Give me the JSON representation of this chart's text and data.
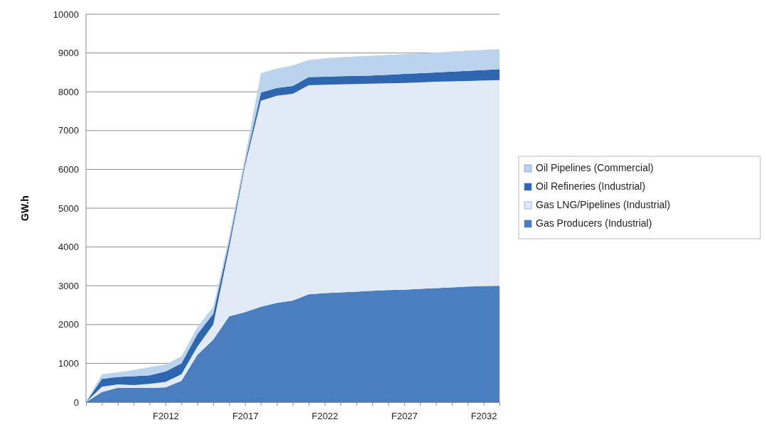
{
  "chart_data": {
    "type": "area",
    "stacked": true,
    "ylabel": "GW.h",
    "categories": [
      null,
      null,
      null,
      null,
      null,
      "F2012",
      null,
      null,
      null,
      null,
      "F2017",
      null,
      null,
      null,
      null,
      "F2022",
      null,
      null,
      null,
      null,
      "F2027",
      null,
      null,
      null,
      null,
      "F2032",
      null
    ],
    "ylim": [
      0,
      10000
    ],
    "yticks": [
      0,
      1000,
      2000,
      3000,
      4000,
      5000,
      6000,
      7000,
      8000,
      9000,
      10000
    ],
    "grid": "y",
    "legend": "right",
    "series": [
      {
        "name": "Gas Producers (Industrial)",
        "color": "#4a7ebf",
        "values": [
          0,
          260,
          370,
          370,
          370,
          380,
          550,
          1220,
          1610,
          2210,
          2320,
          2460,
          2560,
          2620,
          2780,
          2810,
          2830,
          2850,
          2870,
          2890,
          2900,
          2920,
          2940,
          2960,
          2980,
          2990,
          3000
        ]
      },
      {
        "name": "Gas LNG/Pipelines (Industrial)",
        "color": "#e2eaf5",
        "values": [
          0,
          140,
          90,
          70,
          100,
          140,
          170,
          210,
          390,
          1770,
          3780,
          5310,
          5340,
          5330,
          5390,
          5370,
          5360,
          5350,
          5340,
          5330,
          5330,
          5320,
          5320,
          5310,
          5300,
          5300,
          5300
        ]
      },
      {
        "name": "Oil Refineries (Industrial)",
        "color": "#2f66b0",
        "values": [
          0,
          200,
          190,
          230,
          220,
          270,
          280,
          320,
          280,
          140,
          80,
          210,
          200,
          200,
          210,
          210,
          210,
          210,
          210,
          220,
          230,
          240,
          240,
          250,
          260,
          270,
          280
        ]
      },
      {
        "name": "Oil Pipelines (Commercial)",
        "color": "#bcd3ee",
        "values": [
          0,
          120,
          120,
          160,
          210,
          180,
          180,
          180,
          180,
          140,
          140,
          500,
          500,
          530,
          440,
          470,
          490,
          500,
          510,
          510,
          510,
          510,
          510,
          520,
          520,
          520,
          520
        ]
      }
    ]
  }
}
